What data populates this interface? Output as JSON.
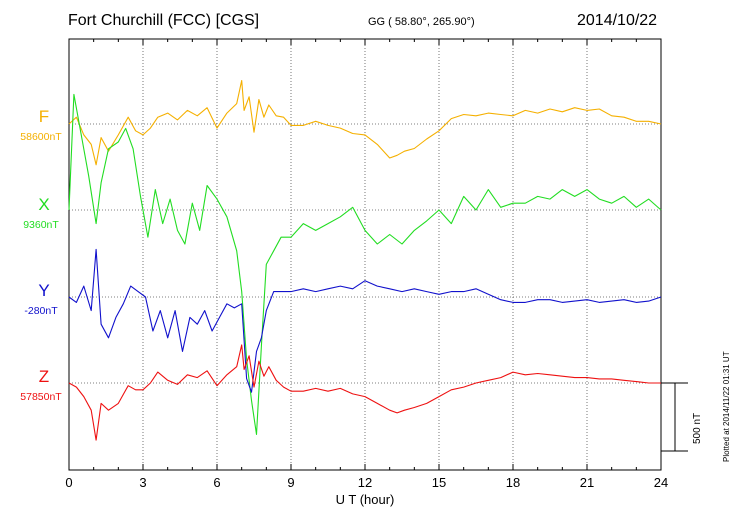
{
  "header": {
    "title": "Fort Churchill (FCC)  [CGS]",
    "coords": "GG ( 58.80°, 265.90°)",
    "date": "2014/10/22"
  },
  "footer": {
    "plotted": "Plotted at 2014/11/22 01:31  UT",
    "scale_label": "500 nT"
  },
  "colors": {
    "F": "#f5b000",
    "X": "#22dd22",
    "Y": "#1111cc",
    "Z": "#ee1111"
  },
  "chart_data": {
    "type": "line",
    "title": "Fort Churchill (FCC)  [CGS]",
    "xlabel": "U T (hour)",
    "xlim": [
      0,
      24
    ],
    "xticks": [
      "0",
      "3",
      "6",
      "9",
      "12",
      "15",
      "18",
      "21",
      "24"
    ],
    "grid": true,
    "scale_bar_nT": 500,
    "series": [
      {
        "name": "F",
        "color": "#f5b000",
        "baseline_label": "58600nT",
        "x": [
          0,
          0.3,
          0.6,
          0.9,
          1.1,
          1.3,
          1.6,
          2,
          2.4,
          2.7,
          3,
          3.3,
          3.6,
          4,
          4.4,
          4.8,
          5.2,
          5.6,
          6,
          6.4,
          6.8,
          7,
          7.1,
          7.3,
          7.5,
          7.7,
          7.9,
          8.1,
          8.4,
          8.7,
          9,
          9.5,
          10,
          10.5,
          11,
          11.5,
          12,
          12.5,
          13,
          13.3,
          13.6,
          14,
          14.5,
          15,
          15.5,
          16,
          16.5,
          17,
          17.5,
          18,
          18.5,
          19,
          19.5,
          20,
          20.5,
          21,
          21.5,
          22,
          22.5,
          23,
          23.5,
          24
        ],
        "y": [
          0,
          50,
          -80,
          -150,
          -300,
          -100,
          -200,
          -80,
          50,
          -50,
          -80,
          -30,
          50,
          80,
          30,
          100,
          60,
          120,
          -30,
          80,
          150,
          320,
          100,
          200,
          -60,
          180,
          50,
          140,
          60,
          50,
          -10,
          -10,
          20,
          -10,
          -30,
          -70,
          -80,
          -150,
          -250,
          -230,
          -200,
          -180,
          -110,
          -50,
          40,
          70,
          60,
          80,
          70,
          60,
          100,
          80,
          110,
          90,
          120,
          100,
          110,
          60,
          50,
          20,
          20,
          0
        ]
      },
      {
        "name": "X",
        "color": "#22dd22",
        "baseline_label": "9360nT",
        "x": [
          0,
          0.2,
          0.5,
          0.8,
          1.1,
          1.3,
          1.6,
          2,
          2.3,
          2.6,
          2.9,
          3.2,
          3.5,
          3.8,
          4.1,
          4.4,
          4.7,
          5,
          5.3,
          5.6,
          6,
          6.4,
          6.8,
          7,
          7.2,
          7.4,
          7.6,
          7.8,
          8,
          8.3,
          8.6,
          9,
          9.5,
          10,
          10.5,
          11,
          11.5,
          12,
          12.5,
          13,
          13.5,
          14,
          14.5,
          15,
          15.5,
          16,
          16.5,
          17,
          17.5,
          18,
          18.5,
          19,
          19.5,
          20,
          20.5,
          21,
          21.5,
          22,
          22.5,
          23,
          23.5,
          24
        ],
        "y": [
          0,
          850,
          550,
          250,
          -100,
          200,
          450,
          500,
          600,
          450,
          100,
          -200,
          150,
          -100,
          80,
          -150,
          -250,
          50,
          -150,
          180,
          80,
          -50,
          -300,
          -600,
          -1100,
          -1400,
          -1650,
          -1000,
          -400,
          -300,
          -200,
          -200,
          -100,
          -150,
          -100,
          -50,
          20,
          -150,
          -250,
          -180,
          -250,
          -150,
          -80,
          0,
          -100,
          100,
          0,
          150,
          20,
          50,
          50,
          100,
          80,
          150,
          100,
          150,
          80,
          50,
          100,
          20,
          80,
          0
        ]
      },
      {
        "name": "Y",
        "color": "#1111cc",
        "baseline_label": "-280nT",
        "x": [
          0,
          0.3,
          0.6,
          0.9,
          1.1,
          1.3,
          1.6,
          1.9,
          2.2,
          2.5,
          2.8,
          3.1,
          3.4,
          3.7,
          4,
          4.3,
          4.6,
          4.9,
          5.2,
          5.5,
          5.8,
          6.1,
          6.4,
          6.7,
          7,
          7.2,
          7.4,
          7.6,
          7.8,
          8,
          8.3,
          8.6,
          9,
          9.5,
          10,
          10.5,
          11,
          11.5,
          12,
          12.5,
          13,
          13.5,
          14,
          14.5,
          15,
          15.5,
          16,
          16.5,
          17,
          17.5,
          18,
          18.5,
          19,
          19.5,
          20,
          20.5,
          21,
          21.5,
          22,
          22.5,
          23,
          23.5,
          24
        ],
        "y": [
          0,
          -40,
          80,
          -100,
          350,
          -200,
          -300,
          -150,
          -50,
          80,
          40,
          0,
          -250,
          -100,
          -300,
          -100,
          -400,
          -150,
          -200,
          -100,
          -250,
          -150,
          -50,
          -80,
          -50,
          -600,
          -700,
          -400,
          -300,
          -100,
          40,
          40,
          40,
          60,
          40,
          60,
          80,
          60,
          120,
          80,
          60,
          40,
          60,
          40,
          20,
          40,
          40,
          60,
          20,
          -20,
          -40,
          -40,
          -20,
          -20,
          -40,
          -30,
          -20,
          -40,
          -30,
          -20,
          -40,
          -30,
          0
        ]
      },
      {
        "name": "Z",
        "color": "#ee1111",
        "baseline_label": "57850nT",
        "x": [
          0,
          0.3,
          0.6,
          0.9,
          1.1,
          1.3,
          1.6,
          2,
          2.4,
          2.7,
          3,
          3.3,
          3.6,
          4,
          4.4,
          4.8,
          5.2,
          5.6,
          6,
          6.4,
          6.8,
          7,
          7.1,
          7.3,
          7.5,
          7.7,
          7.9,
          8.1,
          8.4,
          8.7,
          9,
          9.5,
          10,
          10.5,
          11,
          11.5,
          12,
          12.5,
          13,
          13.3,
          13.6,
          14,
          14.5,
          15,
          15.5,
          16,
          16.5,
          17,
          17.5,
          18,
          18.5,
          19,
          19.5,
          20,
          20.5,
          21,
          21.5,
          22,
          22.5,
          23,
          23.5,
          24
        ],
        "y": [
          0,
          -30,
          -100,
          -200,
          -420,
          -150,
          -200,
          -150,
          -20,
          -50,
          -50,
          0,
          80,
          20,
          -10,
          60,
          40,
          90,
          -20,
          60,
          120,
          280,
          100,
          200,
          -30,
          160,
          50,
          120,
          20,
          -30,
          -60,
          -60,
          -40,
          -60,
          -40,
          -80,
          -100,
          -150,
          -200,
          -220,
          -200,
          -180,
          -150,
          -100,
          -50,
          -30,
          0,
          20,
          40,
          80,
          60,
          70,
          60,
          50,
          40,
          40,
          30,
          30,
          20,
          10,
          0,
          0
        ]
      }
    ]
  }
}
